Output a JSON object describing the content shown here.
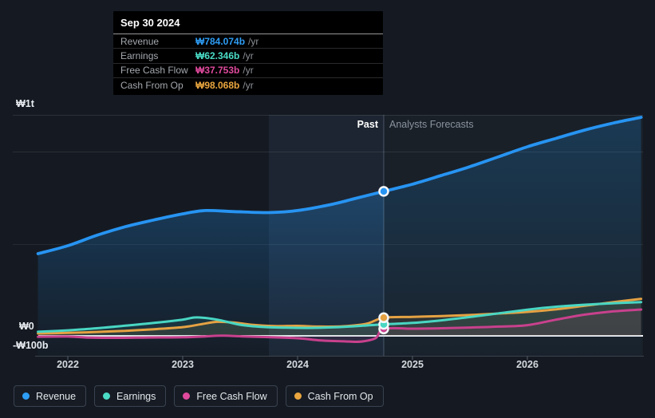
{
  "tooltip": {
    "date": "Sep 30 2024",
    "rows": [
      {
        "label": "Revenue",
        "value": "₩784.074b",
        "unit": "/yr"
      },
      {
        "label": "Earnings",
        "value": "₩62.346b",
        "unit": "/yr"
      },
      {
        "label": "Free Cash Flow",
        "value": "₩37.753b",
        "unit": "/yr"
      },
      {
        "label": "Cash From Op",
        "value": "₩98.068b",
        "unit": "/yr"
      }
    ]
  },
  "sections": {
    "past": "Past",
    "forecast": "Analysts Forecasts"
  },
  "axis": {
    "y_top": "₩1t",
    "y_zero": "₩0",
    "y_neg": "-₩100b",
    "years": [
      "2022",
      "2023",
      "2024",
      "2025",
      "2026"
    ]
  },
  "legend": [
    {
      "label": "Revenue",
      "color": "#2e9df5"
    },
    {
      "label": "Earnings",
      "color": "#4adcc6"
    },
    {
      "label": "Free Cash Flow",
      "color": "#e04a9d"
    },
    {
      "label": "Cash From Op",
      "color": "#eaa63f"
    }
  ],
  "chart_data": {
    "type": "line",
    "title": "Earnings and Revenue Growth Forecast",
    "x_unit": "year",
    "value_unit": "KRW billions per year",
    "x_range": [
      2021.74,
      2026.99
    ],
    "x_ticks": [
      2022,
      2023,
      2024,
      2025,
      2026
    ],
    "y_ticks": [
      {
        "label": "₩1t",
        "value": 1000
      },
      {
        "label": "₩0",
        "value": 0
      },
      {
        "label": "-₩100b",
        "value": -100
      }
    ],
    "ylim_b": [
      -108,
      1199
    ],
    "grid": true,
    "legend_position": "bottom",
    "divider_year": 2024.75,
    "divider_date": "Sep 30 2024",
    "series": [
      {
        "name": "Revenue",
        "color": "#2794f2",
        "points": [
          [
            2021.74,
            446
          ],
          [
            2022.0,
            489
          ],
          [
            2022.25,
            545
          ],
          [
            2022.5,
            592
          ],
          [
            2022.75,
            629
          ],
          [
            2023.0,
            662
          ],
          [
            2023.2,
            680
          ],
          [
            2023.45,
            674
          ],
          [
            2023.75,
            669
          ],
          [
            2024.0,
            680
          ],
          [
            2024.3,
            714
          ],
          [
            2024.5,
            745
          ],
          [
            2024.75,
            784.074
          ],
          [
            2025.0,
            823
          ],
          [
            2025.25,
            870
          ],
          [
            2025.5,
            918
          ],
          [
            2025.75,
            972
          ],
          [
            2026.0,
            1026
          ],
          [
            2026.25,
            1072
          ],
          [
            2026.5,
            1117
          ],
          [
            2026.75,
            1155
          ],
          [
            2026.99,
            1186
          ]
        ]
      },
      {
        "name": "Earnings",
        "color": "#49d6c3",
        "points": [
          [
            2021.74,
            22
          ],
          [
            2022.0,
            30
          ],
          [
            2022.25,
            41
          ],
          [
            2022.5,
            55
          ],
          [
            2022.75,
            70
          ],
          [
            2023.0,
            88
          ],
          [
            2023.12,
            100
          ],
          [
            2023.3,
            88
          ],
          [
            2023.5,
            60
          ],
          [
            2023.7,
            48
          ],
          [
            2023.9,
            44
          ],
          [
            2024.1,
            43
          ],
          [
            2024.3,
            46
          ],
          [
            2024.55,
            54
          ],
          [
            2024.75,
            62.346
          ],
          [
            2025.0,
            70
          ],
          [
            2025.25,
            84
          ],
          [
            2025.5,
            102
          ],
          [
            2025.75,
            122
          ],
          [
            2026.0,
            142
          ],
          [
            2026.25,
            158
          ],
          [
            2026.5,
            169
          ],
          [
            2026.75,
            177
          ],
          [
            2026.99,
            183
          ]
        ]
      },
      {
        "name": "Free Cash Flow",
        "color": "#c8418d",
        "points": [
          [
            2021.74,
            -5
          ],
          [
            2022.0,
            -4
          ],
          [
            2022.2,
            -10
          ],
          [
            2022.45,
            -11
          ],
          [
            2022.7,
            -9
          ],
          [
            2023.0,
            -8
          ],
          [
            2023.2,
            -3
          ],
          [
            2023.35,
            1
          ],
          [
            2023.55,
            -4
          ],
          [
            2023.75,
            -7
          ],
          [
            2024.0,
            -13
          ],
          [
            2024.2,
            -25
          ],
          [
            2024.4,
            -30
          ],
          [
            2024.55,
            -31
          ],
          [
            2024.68,
            -12
          ],
          [
            2024.75,
            37.753
          ],
          [
            2025.0,
            39
          ],
          [
            2025.25,
            41
          ],
          [
            2025.5,
            45
          ],
          [
            2025.75,
            50
          ],
          [
            2026.0,
            58
          ],
          [
            2026.25,
            88
          ],
          [
            2026.5,
            115
          ],
          [
            2026.75,
            133
          ],
          [
            2026.99,
            143
          ]
        ]
      },
      {
        "name": "Cash From Op",
        "color": "#e5a243",
        "points": [
          [
            2021.74,
            13
          ],
          [
            2022.0,
            16
          ],
          [
            2022.25,
            21
          ],
          [
            2022.5,
            27
          ],
          [
            2022.75,
            36
          ],
          [
            2023.0,
            47
          ],
          [
            2023.15,
            62
          ],
          [
            2023.3,
            76
          ],
          [
            2023.45,
            72
          ],
          [
            2023.6,
            60
          ],
          [
            2023.8,
            53
          ],
          [
            2024.0,
            54
          ],
          [
            2024.2,
            50
          ],
          [
            2024.4,
            52
          ],
          [
            2024.6,
            66
          ],
          [
            2024.75,
            98.068
          ],
          [
            2025.0,
            103
          ],
          [
            2025.25,
            107
          ],
          [
            2025.5,
            113
          ],
          [
            2025.75,
            121
          ],
          [
            2026.0,
            130
          ],
          [
            2026.25,
            144
          ],
          [
            2026.5,
            163
          ],
          [
            2026.75,
            183
          ],
          [
            2026.99,
            201
          ]
        ]
      }
    ]
  }
}
